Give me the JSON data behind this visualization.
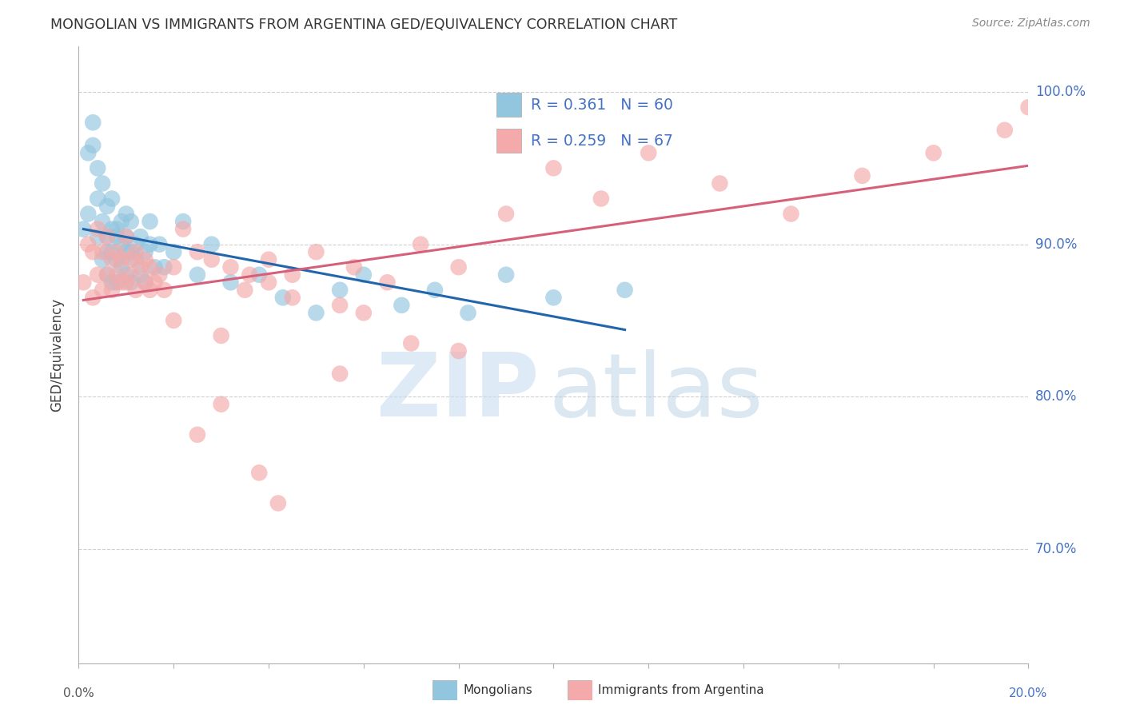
{
  "title": "MONGOLIAN VS IMMIGRANTS FROM ARGENTINA GED/EQUIVALENCY CORRELATION CHART",
  "source": "Source: ZipAtlas.com",
  "ylabel": "GED/Equivalency",
  "ytick_labels": [
    "70.0%",
    "80.0%",
    "90.0%",
    "100.0%"
  ],
  "ytick_values": [
    0.7,
    0.8,
    0.9,
    1.0
  ],
  "xlim": [
    0.0,
    0.2
  ],
  "ylim": [
    0.625,
    1.03
  ],
  "mongolian_color": "#92c5de",
  "argentina_color": "#f4aaaa",
  "line_mongolian": "#2166ac",
  "line_argentina": "#d6607a",
  "watermark_zip_color": "#d0dff0",
  "watermark_atlas_color": "#b8cce4",
  "background_color": "#ffffff",
  "grid_color": "#d0d0d0",
  "title_color": "#333333",
  "right_ytick_color": "#4472c4",
  "legend_r1": "R = 0.361",
  "legend_n1": "N = 60",
  "legend_r2": "R = 0.259",
  "legend_n2": "N = 67",
  "legend_label1": "Mongolians",
  "legend_label2": "Immigrants from Argentina",
  "mong_x": [
    0.001,
    0.002,
    0.002,
    0.003,
    0.003,
    0.004,
    0.004,
    0.004,
    0.005,
    0.005,
    0.005,
    0.006,
    0.006,
    0.006,
    0.006,
    0.007,
    0.007,
    0.007,
    0.007,
    0.008,
    0.008,
    0.008,
    0.008,
    0.009,
    0.009,
    0.009,
    0.01,
    0.01,
    0.01,
    0.01,
    0.011,
    0.011,
    0.011,
    0.012,
    0.012,
    0.013,
    0.013,
    0.014,
    0.014,
    0.015,
    0.015,
    0.016,
    0.017,
    0.018,
    0.02,
    0.022,
    0.025,
    0.028,
    0.032,
    0.038,
    0.043,
    0.05,
    0.055,
    0.06,
    0.068,
    0.075,
    0.082,
    0.09,
    0.1,
    0.115
  ],
  "mong_y": [
    0.91,
    0.96,
    0.92,
    0.965,
    0.98,
    0.93,
    0.905,
    0.95,
    0.89,
    0.915,
    0.94,
    0.905,
    0.925,
    0.895,
    0.88,
    0.91,
    0.895,
    0.875,
    0.93,
    0.905,
    0.89,
    0.875,
    0.91,
    0.9,
    0.915,
    0.885,
    0.92,
    0.895,
    0.88,
    0.905,
    0.895,
    0.875,
    0.915,
    0.9,
    0.89,
    0.905,
    0.88,
    0.895,
    0.875,
    0.9,
    0.915,
    0.885,
    0.9,
    0.885,
    0.895,
    0.915,
    0.88,
    0.9,
    0.875,
    0.88,
    0.865,
    0.855,
    0.87,
    0.88,
    0.86,
    0.87,
    0.855,
    0.88,
    0.865,
    0.87
  ],
  "arg_x": [
    0.001,
    0.002,
    0.003,
    0.003,
    0.004,
    0.004,
    0.005,
    0.005,
    0.006,
    0.006,
    0.007,
    0.007,
    0.008,
    0.008,
    0.009,
    0.009,
    0.01,
    0.01,
    0.011,
    0.011,
    0.012,
    0.012,
    0.013,
    0.014,
    0.014,
    0.015,
    0.016,
    0.017,
    0.018,
    0.02,
    0.022,
    0.025,
    0.028,
    0.032,
    0.036,
    0.04,
    0.045,
    0.05,
    0.058,
    0.065,
    0.072,
    0.08,
    0.09,
    0.1,
    0.11,
    0.12,
    0.135,
    0.15,
    0.165,
    0.18,
    0.195,
    0.2,
    0.04,
    0.055,
    0.035,
    0.06,
    0.045,
    0.07,
    0.08,
    0.055,
    0.03,
    0.025,
    0.038,
    0.042,
    0.03,
    0.02,
    0.015
  ],
  "arg_y": [
    0.875,
    0.9,
    0.895,
    0.865,
    0.91,
    0.88,
    0.895,
    0.87,
    0.905,
    0.88,
    0.89,
    0.87,
    0.895,
    0.88,
    0.89,
    0.875,
    0.905,
    0.875,
    0.89,
    0.88,
    0.895,
    0.87,
    0.885,
    0.875,
    0.89,
    0.885,
    0.875,
    0.88,
    0.87,
    0.885,
    0.91,
    0.895,
    0.89,
    0.885,
    0.88,
    0.89,
    0.88,
    0.895,
    0.885,
    0.875,
    0.9,
    0.885,
    0.92,
    0.95,
    0.93,
    0.96,
    0.94,
    0.92,
    0.945,
    0.96,
    0.975,
    0.99,
    0.875,
    0.86,
    0.87,
    0.855,
    0.865,
    0.835,
    0.83,
    0.815,
    0.795,
    0.775,
    0.75,
    0.73,
    0.84,
    0.85,
    0.87
  ]
}
